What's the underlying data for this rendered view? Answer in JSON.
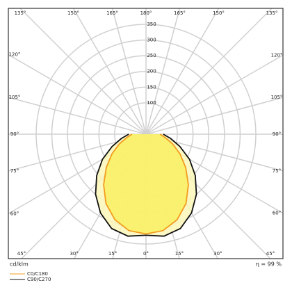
{
  "chart_data": {
    "type": "polar",
    "angles": [
      0,
      10,
      20,
      30,
      40,
      50,
      60,
      70,
      80,
      90
    ],
    "series": [
      {
        "name": "C0/C180",
        "color": "#f39c1e",
        "fill": "#f8f060",
        "values": [
          318,
          312,
          290,
          255,
          210,
          165,
          125,
          90,
          62,
          45
        ]
      },
      {
        "name": "C90/C270",
        "color": "#111111",
        "fill": "#fbf7b8",
        "values": [
          322,
          330,
          320,
          290,
          250,
          205,
          160,
          115,
          80,
          55
        ]
      }
    ],
    "rlim": [
      0,
      350
    ],
    "rticks": [
      100,
      150,
      200,
      250,
      300,
      350
    ],
    "angle_ticks": [
      {
        "value": 0,
        "label": "0°"
      },
      {
        "value": 15,
        "label": "15°"
      },
      {
        "value": 30,
        "label": "30°"
      },
      {
        "value": 45,
        "label": "45°"
      },
      {
        "value": 60,
        "label": "60°"
      },
      {
        "value": 75,
        "label": "75°"
      },
      {
        "value": 90,
        "label": "90°"
      },
      {
        "value": 105,
        "label": "105°"
      },
      {
        "value": 120,
        "label": "120°"
      },
      {
        "value": 135,
        "label": "135°"
      },
      {
        "value": 150,
        "label": "150°"
      },
      {
        "value": 165,
        "label": "165°"
      },
      {
        "value": 180,
        "label": "180°"
      }
    ],
    "unit_label": "cd/klm",
    "efficiency_label": "η = 99 %"
  }
}
